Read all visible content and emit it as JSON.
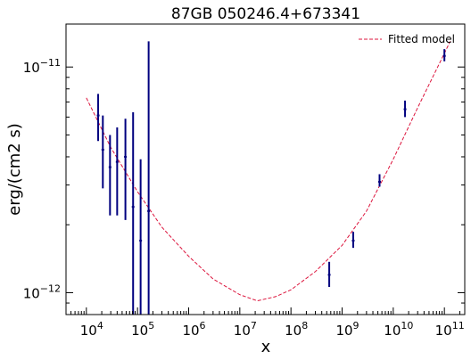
{
  "chart_data": {
    "type": "scatter",
    "title": "87GB 050246.4+673341",
    "xlabel": "x",
    "ylabel": "erg/(cm2 s)",
    "x_scale": "log",
    "y_scale": "log",
    "xlim": [
      4000.0,
      250000000000.0
    ],
    "ylim": [
      8e-13,
      1.55e-11
    ],
    "x_ticks": [
      {
        "value": 10000.0,
        "base": "10",
        "exp": "4"
      },
      {
        "value": 100000.0,
        "base": "10",
        "exp": "5"
      },
      {
        "value": 1000000.0,
        "base": "10",
        "exp": "6"
      },
      {
        "value": 10000000.0,
        "base": "10",
        "exp": "7"
      },
      {
        "value": 100000000.0,
        "base": "10",
        "exp": "8"
      },
      {
        "value": 1000000000.0,
        "base": "10",
        "exp": "9"
      },
      {
        "value": 10000000000.0,
        "base": "10",
        "exp": "10"
      },
      {
        "value": 100000000000.0,
        "base": "10",
        "exp": "11"
      }
    ],
    "y_ticks": [
      {
        "value": 1e-12,
        "base": "10",
        "exp": "−12"
      },
      {
        "value": 1e-11,
        "base": "10",
        "exp": "−11"
      }
    ],
    "legend": {
      "position": "top-right",
      "entries": [
        "Fitted model"
      ]
    },
    "colors": {
      "data": "#00007f",
      "model": "#dc143c"
    },
    "series": [
      {
        "style": "errorbar",
        "points": [
          {
            "x": 17000.0,
            "y": 6.1e-12,
            "ylo": 4.7e-12,
            "yhi": 7.6e-12
          },
          {
            "x": 21000.0,
            "y": 4.3e-12,
            "ylo": 2.9e-12,
            "yhi": 6.1e-12
          },
          {
            "x": 29000.0,
            "y": 3.6e-12,
            "ylo": 2.2e-12,
            "yhi": 5e-12
          },
          {
            "x": 40000.0,
            "y": 3.8e-12,
            "ylo": 2.2e-12,
            "yhi": 5.4e-12
          },
          {
            "x": 58000.0,
            "y": 4e-12,
            "ylo": 2.1e-12,
            "yhi": 5.9e-12
          },
          {
            "x": 82000.0,
            "y": 2.4e-12,
            "ylo": 7e-13,
            "yhi": 6.3e-12
          },
          {
            "x": 115000.0,
            "y": 1.7e-12,
            "ylo": 7e-13,
            "yhi": 3.9e-12
          },
          {
            "x": 165000.0,
            "y": 2.3e-12,
            "ylo": 7e-13,
            "yhi": 1.3e-11
          },
          {
            "x": 560000000.0,
            "y": 1.2e-12,
            "ylo": 1.06e-12,
            "yhi": 1.37e-12
          },
          {
            "x": 1650000000.0,
            "y": 1.7e-12,
            "ylo": 1.58e-12,
            "yhi": 1.86e-12
          },
          {
            "x": 5400000000.0,
            "y": 3.1e-12,
            "ylo": 2.95e-12,
            "yhi": 3.35e-12
          },
          {
            "x": 17000000000.0,
            "y": 6.5e-12,
            "ylo": 6e-12,
            "yhi": 7.1e-12
          },
          {
            "x": 100000000000.0,
            "y": 1.12e-11,
            "ylo": 1.06e-11,
            "yhi": 1.2e-11
          }
        ]
      },
      {
        "name": "Fitted model",
        "style": "dashed-line",
        "points": [
          {
            "x": 10000.0,
            "y": 7.3e-12
          },
          {
            "x": 30000.0,
            "y": 4.4e-12
          },
          {
            "x": 100000.0,
            "y": 2.8e-12
          },
          {
            "x": 300000.0,
            "y": 1.95e-12
          },
          {
            "x": 1000000.0,
            "y": 1.45e-12
          },
          {
            "x": 3000000.0,
            "y": 1.15e-12
          },
          {
            "x": 10000000.0,
            "y": 9.8e-13
          },
          {
            "x": 22000000.0,
            "y": 9.2e-13
          },
          {
            "x": 50000000.0,
            "y": 9.6e-13
          },
          {
            "x": 100000000.0,
            "y": 1.03e-12
          },
          {
            "x": 300000000.0,
            "y": 1.24e-12
          },
          {
            "x": 1000000000.0,
            "y": 1.62e-12
          },
          {
            "x": 3000000000.0,
            "y": 2.3e-12
          },
          {
            "x": 10000000000.0,
            "y": 3.9e-12
          },
          {
            "x": 30000000000.0,
            "y": 6.6e-12
          },
          {
            "x": 100000000000.0,
            "y": 1.15e-11
          },
          {
            "x": 130000000000.0,
            "y": 1.3e-11
          }
        ]
      }
    ]
  }
}
